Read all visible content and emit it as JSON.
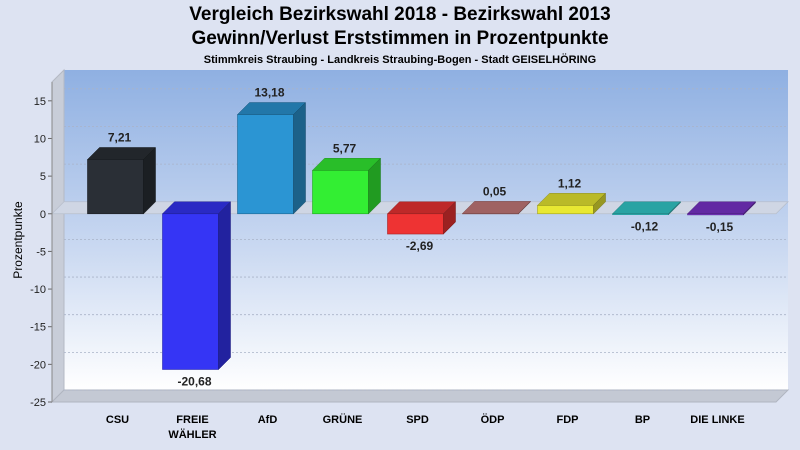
{
  "header": {
    "title_line1": "Vergleich Bezirkswahl 2018 - Bezirkswahl 2013",
    "title_line2": "Gewinn/Verlust Erststimmen in Prozentpunkte",
    "subtitle": "Stimmkreis Straubing - Landkreis Straubing-Bogen - Stadt GEISELHÖRING"
  },
  "chart_data": {
    "type": "bar",
    "title": "Vergleich Bezirkswahl 2018 - Bezirkswahl 2013 Gewinn/Verlust Erststimmen in Prozentpunkte",
    "subtitle": "Stimmkreis Straubing - Landkreis Straubing-Bogen - Stadt GEISELHÖRING",
    "ylabel": "Prozentpunkte",
    "xlabel": "",
    "ylim": [
      -25,
      17.5
    ],
    "yticks": [
      15,
      10,
      5,
      0,
      -5,
      -10,
      -15,
      -20,
      -25
    ],
    "grid": true,
    "three_d": true,
    "categories": [
      [
        "CSU"
      ],
      [
        "FREIE",
        "WÄHLER"
      ],
      [
        "AfD"
      ],
      [
        "GRÜNE"
      ],
      [
        "SPD"
      ],
      [
        "ÖDP"
      ],
      [
        "FDP"
      ],
      [
        "BP"
      ],
      [
        "DIE LINKE"
      ]
    ],
    "values": [
      7.21,
      -20.68,
      13.18,
      5.77,
      -2.69,
      0.05,
      1.12,
      -0.12,
      -0.15
    ],
    "value_labels": [
      "7,21",
      "-20,68",
      "13,18",
      "5,77",
      "-2,69",
      "0,05",
      "1,12",
      "-0,12",
      "-0,15"
    ],
    "colors": [
      "#2a2f36",
      "#3535f5",
      "#2b95d3",
      "#33ee33",
      "#ee3333",
      "#c77a7a",
      "#e8e832",
      "#33cccc",
      "#7a33cc"
    ]
  }
}
